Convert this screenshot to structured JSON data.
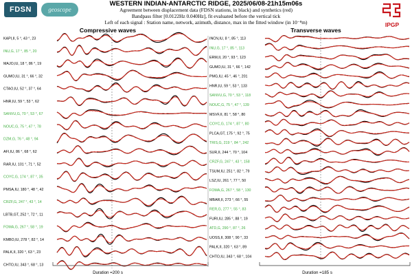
{
  "header": {
    "title": "WESTERN INDIAN-ANTARCTIC RIDGE, 2025/06/08-21h15m06s",
    "line1": "Agreement between displacement data (FDSN stations, in black) and synthetics (red)",
    "line2": "Bandpass filter [0.0122Hz 0.040Hz], fit evaluated before the vertical tick",
    "line3": "Left of each signal : Station name, network, azimuth, distance, max in the fitted window (in 10⁻⁸m)",
    "logo_fdsn": "FDSN",
    "logo_geoscope": "geoscope",
    "logo_ipgp": "IPGP"
  },
  "colors": {
    "data": "#000000",
    "synthetic": "#d42a1e",
    "highlight": "#3fae3f",
    "ipgp": "#c8161d"
  },
  "chart_data": [
    {
      "type": "line",
      "title": "Compressive waves",
      "duration_label": "Duration =200 s",
      "duration_s": 200,
      "stations": [
        {
          "label": "KAPI,II, 5 °, 43 °, 23",
          "green": false
        },
        {
          "label": "INU,G, 17 °, 85 °, 20",
          "green": true
        },
        {
          "label": "MAJO,IU, 18 °, 86 °, 19",
          "green": false
        },
        {
          "label": "GUMO,IU, 31 °, 66 °, 32",
          "green": false
        },
        {
          "label": "CTAO,IU, 52 °, 37 °, 64",
          "green": false
        },
        {
          "label": "HNR,IU, 59 °, 53 °, 62",
          "green": false
        },
        {
          "label": "SANVU,G, 70 °, 53 °, 67",
          "green": true
        },
        {
          "label": "NOUC,G, 75 °, 47 °, 78",
          "green": true
        },
        {
          "label": "DZM,G, 76 °, 48 °, 94",
          "green": true
        },
        {
          "label": "AFI,IU, 86 °, 68 °, 62",
          "green": false
        },
        {
          "label": "RAR,IU, 101 °, 71 °, 52",
          "green": false
        },
        {
          "label": "COYC,G, 174 °, 87 °, 35",
          "green": true
        },
        {
          "label": "PMSA,IU, 180 °, 48 °, 42",
          "green": false
        },
        {
          "label": "CRZF,G, 247 °, 43 °, 14",
          "green": true
        },
        {
          "label": "LBTB,GT, 252 °, 72 °, 11",
          "green": false
        },
        {
          "label": "FOMA,G, 267 °, 58 °, 19",
          "green": true
        },
        {
          "label": "KMBO,IU, 278 °, 82 °, 14",
          "green": false
        },
        {
          "label": "PALK,II, 320 °, 63 °, 23",
          "green": false
        },
        {
          "label": "CHTO,IU, 343 °, 68 °, 13",
          "green": false
        }
      ]
    },
    {
      "type": "line",
      "title": "Transverse waves",
      "duration_label": "Duration =185 s",
      "duration_s": 185,
      "stations": [
        {
          "label": "INCN,IU, 8 °, 85 °, 113",
          "green": false
        },
        {
          "label": "INU,G, 17 °, 85 °, 113",
          "green": true
        },
        {
          "label": "ERM,II, 20 °, 93 °, 123",
          "green": false
        },
        {
          "label": "GUMO,IU, 31 °, 66 °, 142",
          "green": false
        },
        {
          "label": "PMG,IU, 45 °, 46 °, 201",
          "green": false
        },
        {
          "label": "HNR,IU, 59 °, 53 °, 133",
          "green": false
        },
        {
          "label": "SANVU,G, 70 °, 53 °, 118",
          "green": true
        },
        {
          "label": "NOUC,G, 75 °, 47 °, 139",
          "green": true
        },
        {
          "label": "MSVF,II, 81 °, 58 °, 80",
          "green": false
        },
        {
          "label": "COYC,G, 174 °, 87 °, 80",
          "green": true
        },
        {
          "label": "PLCA,GT, 175 °, 92 °, 75",
          "green": false
        },
        {
          "label": "TRIS,G, 219 °, 84 °, 242",
          "green": true
        },
        {
          "label": "SUR,II, 244 °, 70 °, 104",
          "green": false
        },
        {
          "label": "CRZF,G, 247 °, 43 °, 158",
          "green": true
        },
        {
          "label": "TSUM,IU, 251 °, 82 °, 79",
          "green": false
        },
        {
          "label": "LSZ,IU, 261 °, 77 °, 50",
          "green": false
        },
        {
          "label": "FOMA,G, 267 °, 58 °, 130",
          "green": true
        },
        {
          "label": "MBAR,II, 273 °, 66 °, 55",
          "green": false
        },
        {
          "label": "RER,G, 277 °, 55 °, 83",
          "green": true
        },
        {
          "label": "FURI,IU, 285 °, 88 °, 19",
          "green": false
        },
        {
          "label": "ATD,G, 290 °, 87 °, 26",
          "green": true
        },
        {
          "label": "UOSS,II, 308 °, 90 °, 33",
          "green": false
        },
        {
          "label": "PALK,II, 320 °, 63 °, 89",
          "green": false
        },
        {
          "label": "CHTO,IU, 343 °, 68 °, 104",
          "green": false
        }
      ]
    }
  ]
}
